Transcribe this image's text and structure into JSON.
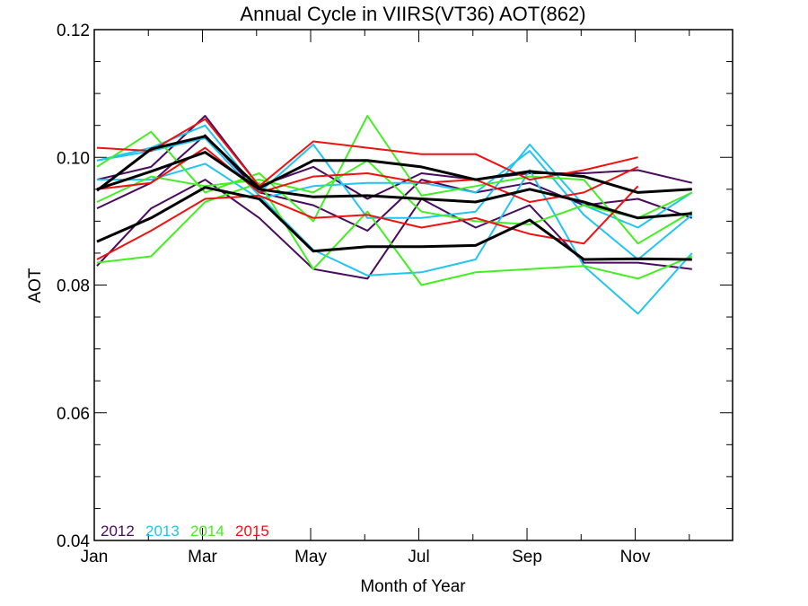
{
  "chart_data": {
    "type": "line",
    "title": "Annual Cycle in VIIRS(VT36) AOT(862)",
    "xlabel": "Month of Year",
    "ylabel": "AOT",
    "xlim": [
      1,
      12.8
    ],
    "ylim": [
      0.04,
      0.12
    ],
    "xticks": [
      {
        "value": 1,
        "label": "Jan"
      },
      {
        "value": 3,
        "label": "Mar"
      },
      {
        "value": 5,
        "label": "May"
      },
      {
        "value": 7,
        "label": "Jul"
      },
      {
        "value": 9,
        "label": "Sep"
      },
      {
        "value": 11,
        "label": "Nov"
      }
    ],
    "yticks": [
      {
        "value": 0.04,
        "label": "0.04"
      },
      {
        "value": 0.06,
        "label": "0.06"
      },
      {
        "value": 0.08,
        "label": "0.08"
      },
      {
        "value": 0.1,
        "label": "0.10"
      },
      {
        "value": 0.12,
        "label": "0.12"
      }
    ],
    "x": [
      1.05,
      2.05,
      3.05,
      4.05,
      5.05,
      6.05,
      7.05,
      8.05,
      9.05,
      10.05,
      11.05,
      12.05
    ],
    "legend": [
      {
        "label": "2012",
        "color": "#4a0a5e"
      },
      {
        "label": "2013",
        "color": "#22c4f0"
      },
      {
        "label": "2014",
        "color": "#44ee22"
      },
      {
        "label": "2015",
        "color": "#ee1111"
      }
    ],
    "series": [
      {
        "color": "#4a0a5e",
        "width": 2,
        "values": [
          0.0965,
          0.0985,
          0.1065,
          0.0955,
          0.0985,
          0.0935,
          0.0975,
          0.0965,
          0.0975,
          0.0975,
          0.098,
          0.096
        ]
      },
      {
        "color": "#4a0a5e",
        "width": 2,
        "values": [
          0.092,
          0.096,
          0.1035,
          0.0945,
          0.0925,
          0.0885,
          0.0965,
          0.0945,
          0.096,
          0.0925,
          0.0935,
          0.0905
        ]
      },
      {
        "color": "#4a0a5e",
        "width": 2,
        "values": [
          0.083,
          0.092,
          0.0965,
          0.0905,
          0.0825,
          0.081,
          0.0935,
          0.089,
          0.0925,
          0.0835,
          0.0835,
          0.0825
        ]
      },
      {
        "color": "#22c4f0",
        "width": 2,
        "values": [
          0.0995,
          0.1015,
          0.105,
          0.0945,
          0.102,
          0.0905,
          0.0905,
          0.0915,
          0.102,
          0.0925,
          0.089,
          0.0945
        ]
      },
      {
        "color": "#22c4f0",
        "width": 2,
        "values": [
          0.0965,
          0.0965,
          0.099,
          0.0935,
          0.0955,
          0.096,
          0.096,
          0.0945,
          0.101,
          0.091,
          0.084,
          0.091
        ]
      },
      {
        "color": "#22c4f0",
        "width": 2,
        "values": [
          0.0995,
          0.101,
          0.103,
          0.094,
          0.0855,
          0.0815,
          0.082,
          0.084,
          0.098,
          0.083,
          0.0755,
          0.085
        ]
      },
      {
        "color": "#44ee22",
        "width": 2,
        "values": [
          0.0985,
          0.104,
          0.0945,
          0.0975,
          0.09,
          0.1065,
          0.094,
          0.0955,
          0.097,
          0.0965,
          0.0865,
          0.0915
        ]
      },
      {
        "color": "#44ee22",
        "width": 2,
        "values": [
          0.093,
          0.097,
          0.0955,
          0.0965,
          0.0945,
          0.0995,
          0.0915,
          0.09,
          0.0895,
          0.0925,
          0.0905,
          0.0945
        ]
      },
      {
        "color": "#44ee22",
        "width": 2,
        "values": [
          0.0835,
          0.0845,
          0.093,
          0.096,
          0.0825,
          0.0915,
          0.08,
          0.082,
          0.0825,
          0.083,
          0.081,
          0.0845
        ]
      },
      {
        "color": "#ee1111",
        "width": 2,
        "values": [
          0.1015,
          0.101,
          0.106,
          0.0955,
          0.1025,
          0.1015,
          0.1005,
          0.1005,
          0.0965,
          0.098,
          0.1,
          null
        ]
      },
      {
        "color": "#ee1111",
        "width": 2,
        "values": [
          0.095,
          0.096,
          0.1015,
          0.0945,
          0.097,
          0.0975,
          0.096,
          0.0965,
          0.093,
          0.0945,
          0.0985,
          null
        ]
      },
      {
        "color": "#ee1111",
        "width": 2,
        "values": [
          0.084,
          0.0885,
          0.0935,
          0.094,
          0.0905,
          0.091,
          0.089,
          0.0905,
          0.088,
          0.0865,
          0.0955,
          null
        ]
      },
      {
        "color": "#000000",
        "width": 3,
        "values": [
          0.0948,
          0.1013,
          0.1033,
          0.0952,
          0.0995,
          0.0995,
          0.0985,
          0.0965,
          0.0978,
          0.097,
          0.0945,
          0.095
        ]
      },
      {
        "color": "#000000",
        "width": 3,
        "values": [
          0.095,
          0.0978,
          0.1008,
          0.095,
          0.0938,
          0.094,
          0.0935,
          0.093,
          0.095,
          0.093,
          0.0905,
          0.0912
        ]
      },
      {
        "color": "#000000",
        "width": 3,
        "values": [
          0.0868,
          0.0905,
          0.0953,
          0.0935,
          0.0853,
          0.086,
          0.086,
          0.0862,
          0.0902,
          0.084,
          0.0841,
          0.084
        ]
      }
    ]
  }
}
